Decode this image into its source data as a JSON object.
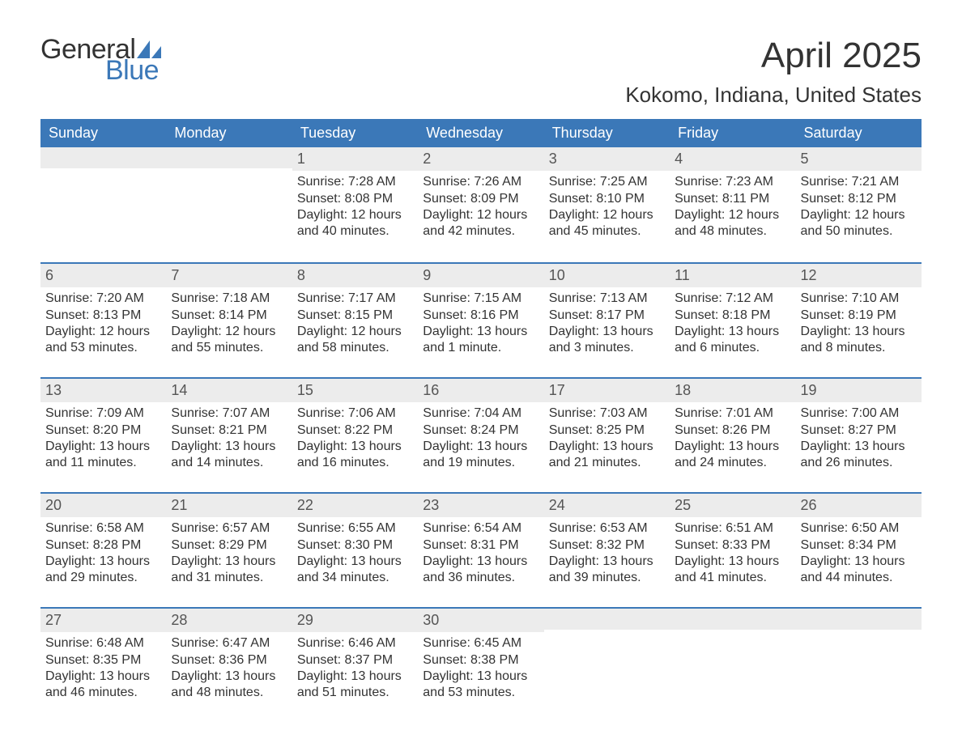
{
  "brand": {
    "general": "General",
    "blue": "Blue",
    "accent_color": "#3b78b8"
  },
  "title": "April 2025",
  "subtitle": "Kokomo, Indiana, United States",
  "colors": {
    "header_bg": "#3b78b8",
    "header_text": "#ffffff",
    "daynum_bg": "#ececec",
    "text": "#333333",
    "rule": "#3b78b8"
  },
  "fonts": {
    "title_size_pt": 33,
    "subtitle_size_pt": 20,
    "dow_size_pt": 14,
    "daynum_size_pt": 14,
    "body_size_pt": 12
  },
  "days_of_week": [
    "Sunday",
    "Monday",
    "Tuesday",
    "Wednesday",
    "Thursday",
    "Friday",
    "Saturday"
  ],
  "labels": {
    "sunrise": "Sunrise:",
    "sunset": "Sunset:",
    "daylight": "Daylight:"
  },
  "weeks": [
    [
      {
        "blank": true
      },
      {
        "blank": true
      },
      {
        "date": "1",
        "sunrise": "7:28 AM",
        "sunset": "8:08 PM",
        "daylight": "12 hours and 40 minutes."
      },
      {
        "date": "2",
        "sunrise": "7:26 AM",
        "sunset": "8:09 PM",
        "daylight": "12 hours and 42 minutes."
      },
      {
        "date": "3",
        "sunrise": "7:25 AM",
        "sunset": "8:10 PM",
        "daylight": "12 hours and 45 minutes."
      },
      {
        "date": "4",
        "sunrise": "7:23 AM",
        "sunset": "8:11 PM",
        "daylight": "12 hours and 48 minutes."
      },
      {
        "date": "5",
        "sunrise": "7:21 AM",
        "sunset": "8:12 PM",
        "daylight": "12 hours and 50 minutes."
      }
    ],
    [
      {
        "date": "6",
        "sunrise": "7:20 AM",
        "sunset": "8:13 PM",
        "daylight": "12 hours and 53 minutes."
      },
      {
        "date": "7",
        "sunrise": "7:18 AM",
        "sunset": "8:14 PM",
        "daylight": "12 hours and 55 minutes."
      },
      {
        "date": "8",
        "sunrise": "7:17 AM",
        "sunset": "8:15 PM",
        "daylight": "12 hours and 58 minutes."
      },
      {
        "date": "9",
        "sunrise": "7:15 AM",
        "sunset": "8:16 PM",
        "daylight": "13 hours and 1 minute."
      },
      {
        "date": "10",
        "sunrise": "7:13 AM",
        "sunset": "8:17 PM",
        "daylight": "13 hours and 3 minutes."
      },
      {
        "date": "11",
        "sunrise": "7:12 AM",
        "sunset": "8:18 PM",
        "daylight": "13 hours and 6 minutes."
      },
      {
        "date": "12",
        "sunrise": "7:10 AM",
        "sunset": "8:19 PM",
        "daylight": "13 hours and 8 minutes."
      }
    ],
    [
      {
        "date": "13",
        "sunrise": "7:09 AM",
        "sunset": "8:20 PM",
        "daylight": "13 hours and 11 minutes."
      },
      {
        "date": "14",
        "sunrise": "7:07 AM",
        "sunset": "8:21 PM",
        "daylight": "13 hours and 14 minutes."
      },
      {
        "date": "15",
        "sunrise": "7:06 AM",
        "sunset": "8:22 PM",
        "daylight": "13 hours and 16 minutes."
      },
      {
        "date": "16",
        "sunrise": "7:04 AM",
        "sunset": "8:24 PM",
        "daylight": "13 hours and 19 minutes."
      },
      {
        "date": "17",
        "sunrise": "7:03 AM",
        "sunset": "8:25 PM",
        "daylight": "13 hours and 21 minutes."
      },
      {
        "date": "18",
        "sunrise": "7:01 AM",
        "sunset": "8:26 PM",
        "daylight": "13 hours and 24 minutes."
      },
      {
        "date": "19",
        "sunrise": "7:00 AM",
        "sunset": "8:27 PM",
        "daylight": "13 hours and 26 minutes."
      }
    ],
    [
      {
        "date": "20",
        "sunrise": "6:58 AM",
        "sunset": "8:28 PM",
        "daylight": "13 hours and 29 minutes."
      },
      {
        "date": "21",
        "sunrise": "6:57 AM",
        "sunset": "8:29 PM",
        "daylight": "13 hours and 31 minutes."
      },
      {
        "date": "22",
        "sunrise": "6:55 AM",
        "sunset": "8:30 PM",
        "daylight": "13 hours and 34 minutes."
      },
      {
        "date": "23",
        "sunrise": "6:54 AM",
        "sunset": "8:31 PM",
        "daylight": "13 hours and 36 minutes."
      },
      {
        "date": "24",
        "sunrise": "6:53 AM",
        "sunset": "8:32 PM",
        "daylight": "13 hours and 39 minutes."
      },
      {
        "date": "25",
        "sunrise": "6:51 AM",
        "sunset": "8:33 PM",
        "daylight": "13 hours and 41 minutes."
      },
      {
        "date": "26",
        "sunrise": "6:50 AM",
        "sunset": "8:34 PM",
        "daylight": "13 hours and 44 minutes."
      }
    ],
    [
      {
        "date": "27",
        "sunrise": "6:48 AM",
        "sunset": "8:35 PM",
        "daylight": "13 hours and 46 minutes."
      },
      {
        "date": "28",
        "sunrise": "6:47 AM",
        "sunset": "8:36 PM",
        "daylight": "13 hours and 48 minutes."
      },
      {
        "date": "29",
        "sunrise": "6:46 AM",
        "sunset": "8:37 PM",
        "daylight": "13 hours and 51 minutes."
      },
      {
        "date": "30",
        "sunrise": "6:45 AM",
        "sunset": "8:38 PM",
        "daylight": "13 hours and 53 minutes."
      },
      {
        "blank": true
      },
      {
        "blank": true
      },
      {
        "blank": true
      }
    ]
  ]
}
